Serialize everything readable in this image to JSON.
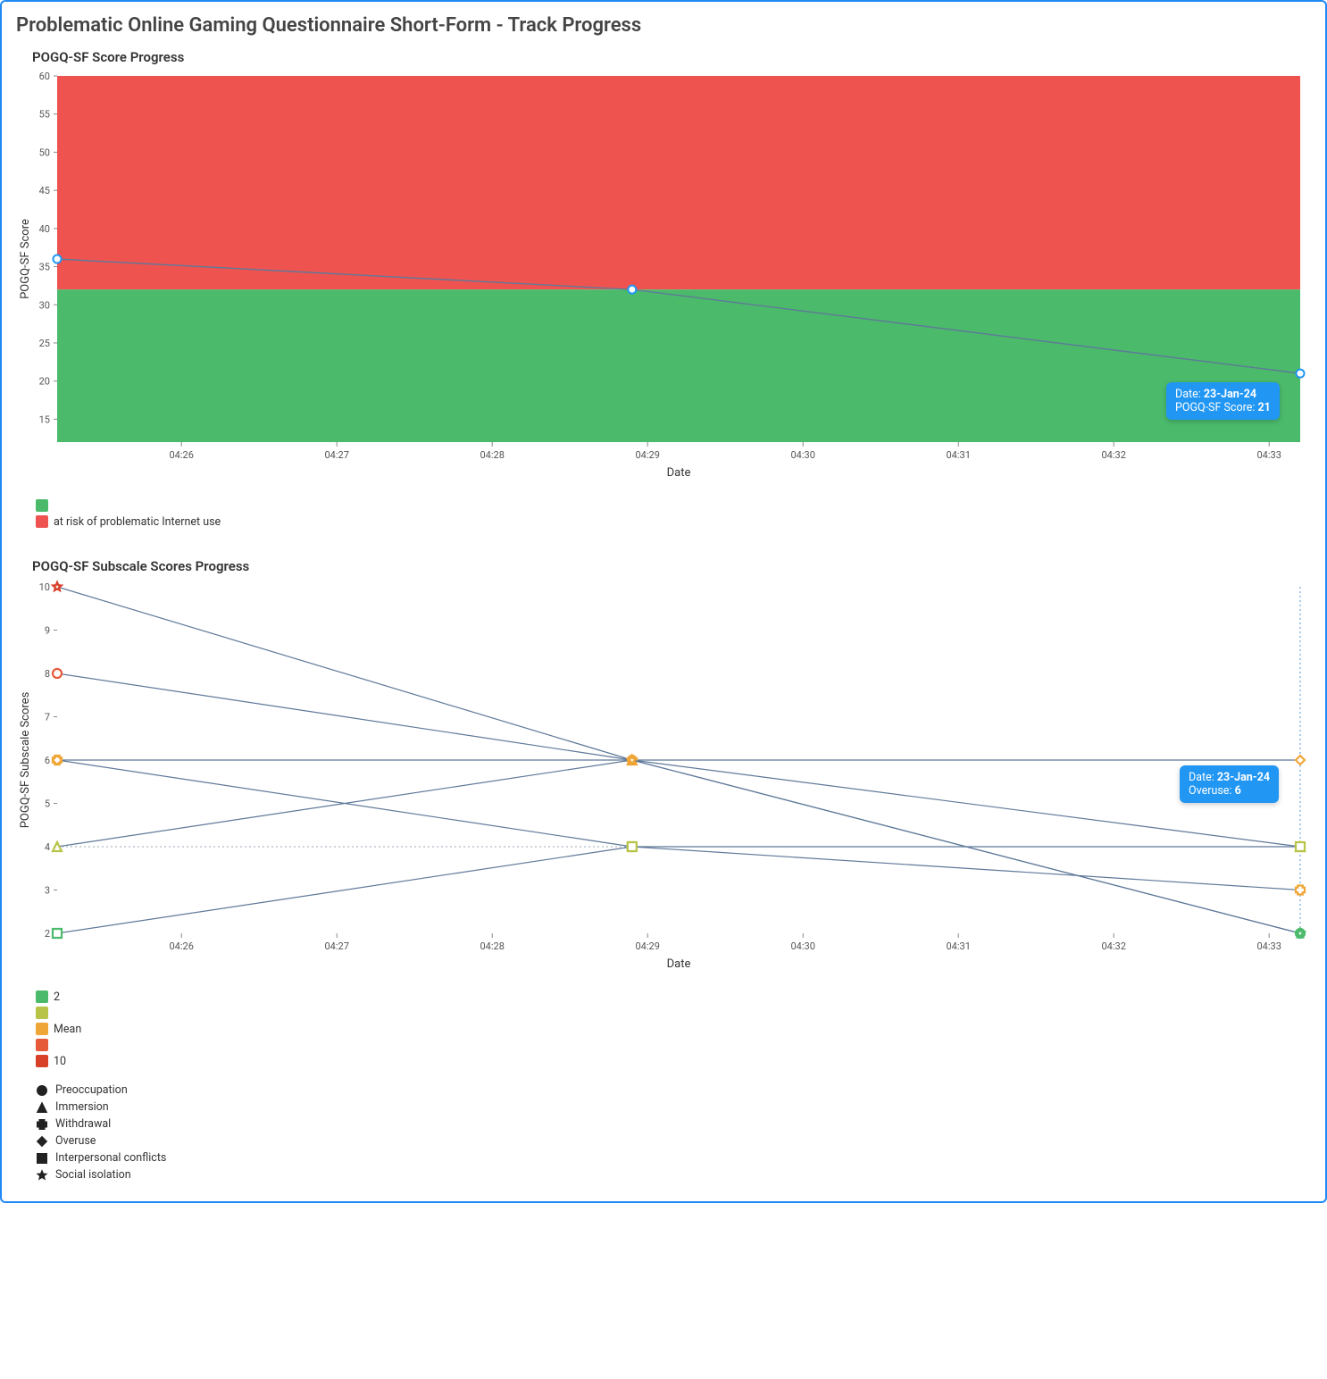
{
  "page_title": "Problematic Online Gaming Questionnaire Short-Form - Track Progress",
  "chart1": {
    "title": "POGQ-SF Score Progress",
    "x_label": "Date",
    "y_label": "POGQ-SF Score",
    "x_ticks": [
      "04:26",
      "04:27",
      "04:28",
      "04:29",
      "04:30",
      "04:31",
      "04:32",
      "04:33"
    ],
    "y_min": 12,
    "y_max": 60,
    "y_ticks": [
      15,
      20,
      25,
      30,
      35,
      40,
      45,
      50,
      55,
      60
    ],
    "threshold": 32,
    "band_low_color": "#4bba6b",
    "band_high_color": "#ef5350",
    "line_color": "#5f7999",
    "marker_stroke": "#2196f3",
    "marker_fill": "#ffffff",
    "points": [
      {
        "x": "04:25.2",
        "y": 36
      },
      {
        "x": "04:28.9",
        "y": 32
      },
      {
        "x": "04:33.2",
        "y": 21
      }
    ],
    "tooltip": {
      "date": "23-Jan-24",
      "label": "POGQ-SF Score",
      "value": "21",
      "anchor_x": "04:33.2",
      "anchor_y": 21
    },
    "legend": [
      {
        "color": "#4bba6b",
        "label": ""
      },
      {
        "color": "#ef5350",
        "label": "at risk of problematic Internet use"
      }
    ]
  },
  "chart2": {
    "title": "POGQ-SF Subscale Scores Progress",
    "x_label": "Date",
    "y_label": "POGQ-SF Subscale Scores",
    "x_ticks": [
      "04:26",
      "04:27",
      "04:28",
      "04:29",
      "04:30",
      "04:31",
      "04:32",
      "04:33"
    ],
    "y_min": 2,
    "y_max": 10,
    "y_ticks": [
      2,
      3,
      4,
      5,
      6,
      7,
      8,
      9,
      10
    ],
    "line_color": "#5f7999",
    "guide_color": "#9aa6b5",
    "hover_line_color": "#6fa8dc",
    "series": [
      {
        "name": "Preoccupation",
        "shape": "circle",
        "points": [
          {
            "x": "04:25.2",
            "y": 8,
            "c": "#e65a3a"
          },
          {
            "x": "04:28.9",
            "y": 6,
            "c": "#f0a637"
          },
          {
            "x": "04:33.2",
            "y": 2,
            "c": "#4bba6b"
          }
        ]
      },
      {
        "name": "Immersion",
        "shape": "triangle",
        "points": [
          {
            "x": "04:25.2",
            "y": 4,
            "c": "#b8c447"
          },
          {
            "x": "04:28.9",
            "y": 6,
            "c": "#f0a637"
          },
          {
            "x": "04:33.2",
            "y": 4,
            "c": "#b8c447"
          }
        ]
      },
      {
        "name": "Withdrawal",
        "shape": "plus",
        "points": [
          {
            "x": "04:25.2",
            "y": 6,
            "c": "#f0a637"
          },
          {
            "x": "04:28.9",
            "y": 4,
            "c": "#b8c447"
          },
          {
            "x": "04:33.2",
            "y": 3,
            "c": "#f0a637"
          }
        ]
      },
      {
        "name": "Overuse",
        "shape": "diamond",
        "points": [
          {
            "x": "04:25.2",
            "y": 6,
            "c": "#f0a637"
          },
          {
            "x": "04:28.9",
            "y": 6,
            "c": "#f0a637"
          },
          {
            "x": "04:33.2",
            "y": 6,
            "c": "#f0a637"
          }
        ]
      },
      {
        "name": "Interpersonal conflicts",
        "shape": "square",
        "points": [
          {
            "x": "04:25.2",
            "y": 2,
            "c": "#4bba6b"
          },
          {
            "x": "04:28.9",
            "y": 4,
            "c": "#b8c447"
          },
          {
            "x": "04:33.2",
            "y": 4,
            "c": "#b8c447"
          }
        ]
      },
      {
        "name": "Social isolation",
        "shape": "star",
        "points": [
          {
            "x": "04:25.2",
            "y": 10,
            "c": "#d9402a"
          },
          {
            "x": "04:28.9",
            "y": 6,
            "c": "#f0a637"
          },
          {
            "x": "04:33.2",
            "y": 2,
            "c": "#4bba6b"
          }
        ]
      }
    ],
    "tooltip": {
      "date": "23-Jan-24",
      "label": "Overuse",
      "value": "6",
      "anchor_x": "04:33.2",
      "anchor_y": 6
    },
    "color_legend": [
      {
        "color": "#4bba6b",
        "label": "2"
      },
      {
        "color": "#b8c447",
        "label": ""
      },
      {
        "color": "#f0a637",
        "label": "Mean"
      },
      {
        "color": "#e65a3a",
        "label": ""
      },
      {
        "color": "#d9402a",
        "label": "10"
      }
    ],
    "shape_legend": [
      {
        "shape": "circle",
        "label": "Preoccupation"
      },
      {
        "shape": "triangle",
        "label": "Immersion"
      },
      {
        "shape": "plus",
        "label": "Withdrawal"
      },
      {
        "shape": "diamond",
        "label": "Overuse"
      },
      {
        "shape": "square",
        "label": "Interpersonal conflicts"
      },
      {
        "shape": "star",
        "label": "Social isolation"
      }
    ]
  }
}
